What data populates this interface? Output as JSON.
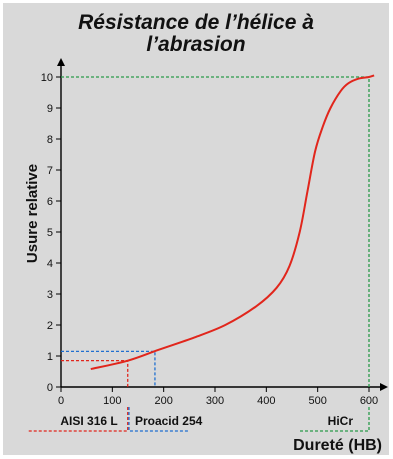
{
  "chart_data": {
    "type": "line",
    "title": "Résistance de l’hélice à",
    "subtitle": "l’abrasion",
    "xlabel": "Dureté (HB)",
    "ylabel": "Usure relative",
    "xlim": [
      0,
      620
    ],
    "ylim": [
      0,
      10.3
    ],
    "xticks": [
      "0",
      "100",
      "200",
      "300",
      "400",
      "500",
      "600"
    ],
    "yticks": [
      "0",
      "1",
      "2",
      "3",
      "4",
      "5",
      "6",
      "7",
      "8",
      "9",
      "10"
    ],
    "grid": false,
    "series": [
      {
        "name": "",
        "color": "#e1261c",
        "x": [
          58,
          130,
          190,
          260,
          320,
          380,
          420,
          445,
          465,
          480,
          495,
          510,
          525,
          545,
          560,
          580,
          600,
          610
        ],
        "y": [
          0.58,
          0.85,
          1.2,
          1.6,
          2.0,
          2.6,
          3.2,
          3.9,
          5.0,
          6.3,
          7.6,
          8.4,
          9.0,
          9.55,
          9.8,
          9.95,
          10.0,
          10.05
        ]
      }
    ],
    "markers": [
      {
        "name": "AISI 316 L",
        "x": 130,
        "y": 0.85,
        "color": "#e1261c"
      },
      {
        "name": "Proacid 254",
        "x": 183,
        "y": 1.15,
        "color": "#1f6fd0"
      },
      {
        "name": "HiCr",
        "x": 600,
        "y": 10.0,
        "color": "#2a9a4a"
      }
    ]
  }
}
